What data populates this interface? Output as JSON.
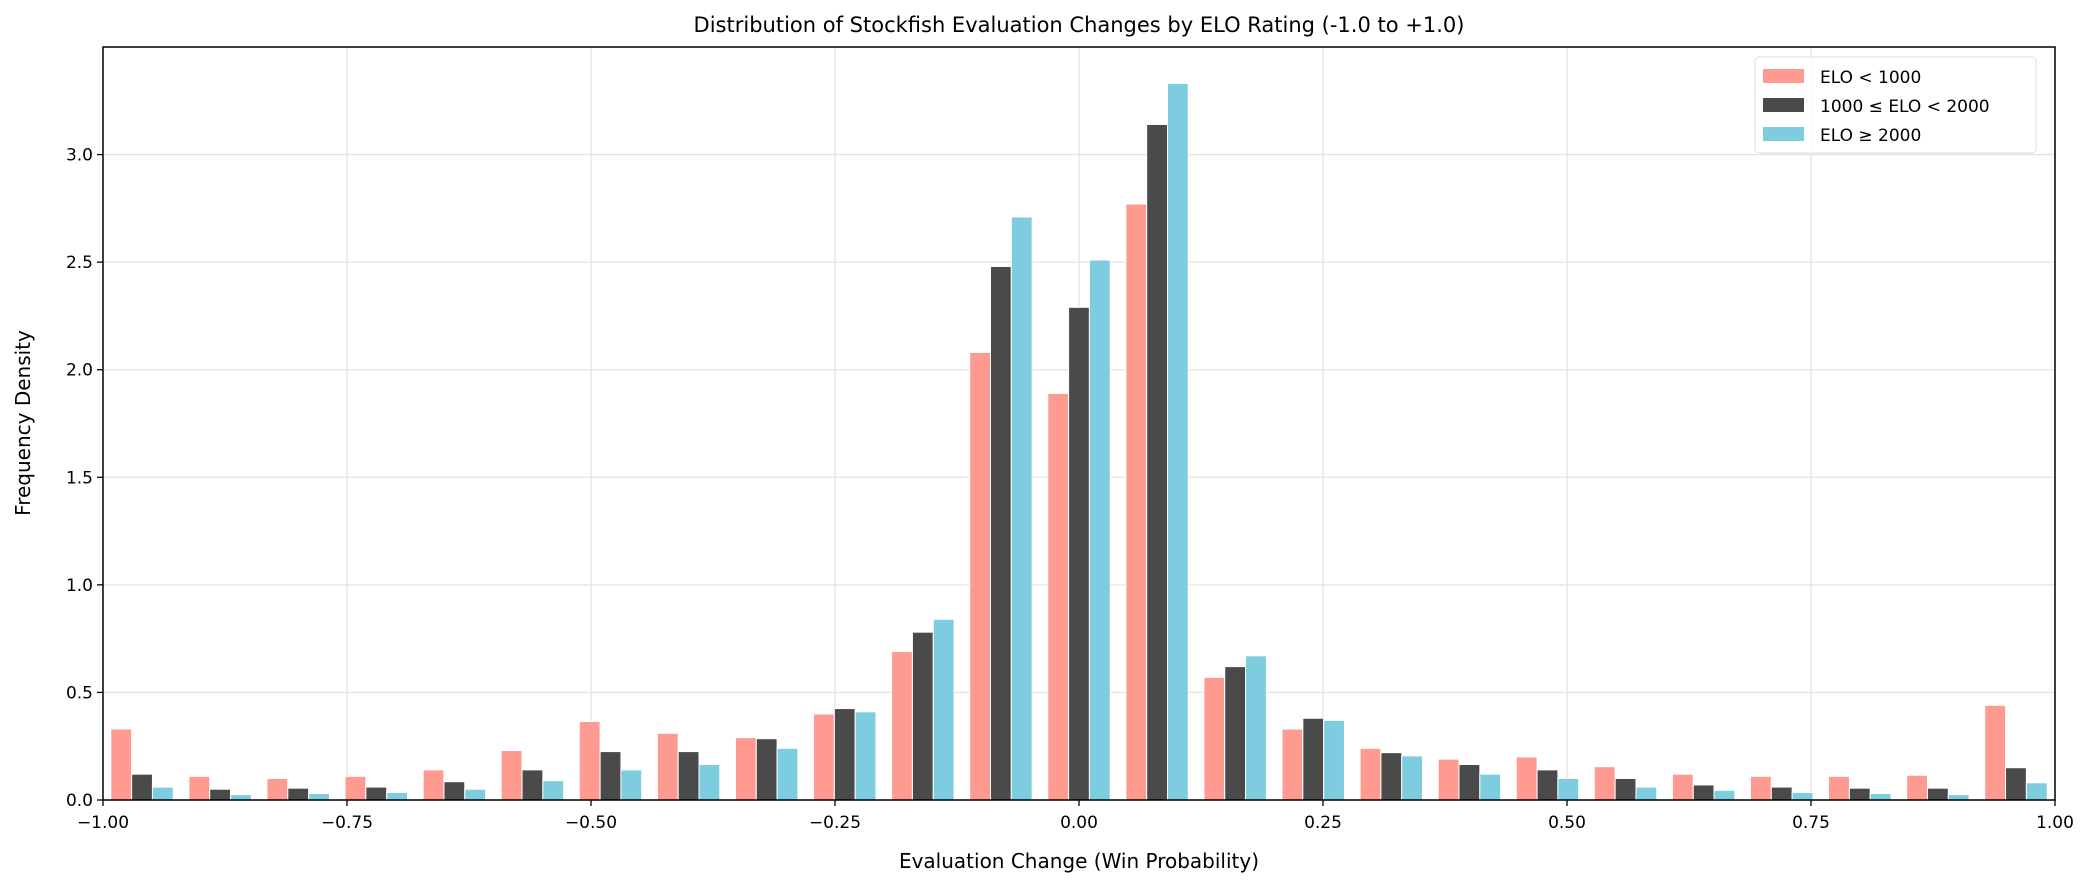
{
  "chart_data": {
    "type": "bar",
    "title": "Distribution of Stockfish Evaluation Changes by ELO Rating (-1.0 to +1.0)",
    "xlabel": "Evaluation Change (Win Probability)",
    "ylabel": "Frequency Density",
    "xlim": [
      -1.0,
      1.0
    ],
    "ylim": [
      0,
      3.5
    ],
    "grid": true,
    "legend_position": "top-right",
    "bin_width": 0.08,
    "x": [
      -0.96,
      -0.88,
      -0.8,
      -0.72,
      -0.64,
      -0.56,
      -0.48,
      -0.4,
      -0.32,
      -0.24,
      -0.16,
      -0.08,
      0.0,
      0.08,
      0.16,
      0.24,
      0.32,
      0.4,
      0.48,
      0.56,
      0.64,
      0.72,
      0.8,
      0.88,
      0.96
    ],
    "xticks": [
      -1.0,
      -0.75,
      -0.5,
      -0.25,
      0.0,
      0.25,
      0.5,
      0.75,
      1.0
    ],
    "xtick_labels": [
      "−1.00",
      "−0.75",
      "−0.50",
      "−0.25",
      "0.00",
      "0.25",
      "0.50",
      "0.75",
      "1.00"
    ],
    "yticks": [
      0,
      0.5,
      1.0,
      1.5,
      2.0,
      2.5,
      3.0
    ],
    "ytick_labels": [
      "0.0",
      "0.5",
      "1.0",
      "1.5",
      "2.0",
      "2.5",
      "3.0"
    ],
    "series": [
      {
        "name": "ELO < 1000",
        "color": "#FF9A91",
        "values": [
          0.33,
          0.11,
          0.1,
          0.11,
          0.14,
          0.23,
          0.365,
          0.31,
          0.29,
          0.4,
          0.69,
          2.08,
          1.89,
          2.77,
          0.57,
          0.33,
          0.24,
          0.19,
          0.2,
          0.155,
          0.12,
          0.11,
          0.11,
          0.115,
          0.44
        ]
      },
      {
        "name": "1000 ≤ ELO < 2000",
        "color": "#4A4A4A",
        "values": [
          0.12,
          0.05,
          0.055,
          0.06,
          0.085,
          0.14,
          0.225,
          0.225,
          0.285,
          0.425,
          0.78,
          2.48,
          2.29,
          3.14,
          0.62,
          0.38,
          0.22,
          0.165,
          0.14,
          0.1,
          0.07,
          0.06,
          0.055,
          0.055,
          0.15
        ]
      },
      {
        "name": "ELO ≥ 2000",
        "color": "#7ECCDF",
        "values": [
          0.06,
          0.025,
          0.03,
          0.035,
          0.05,
          0.09,
          0.14,
          0.165,
          0.24,
          0.41,
          0.84,
          2.71,
          2.51,
          3.33,
          0.67,
          0.37,
          0.205,
          0.12,
          0.1,
          0.06,
          0.045,
          0.035,
          0.03,
          0.025,
          0.08
        ]
      }
    ]
  }
}
